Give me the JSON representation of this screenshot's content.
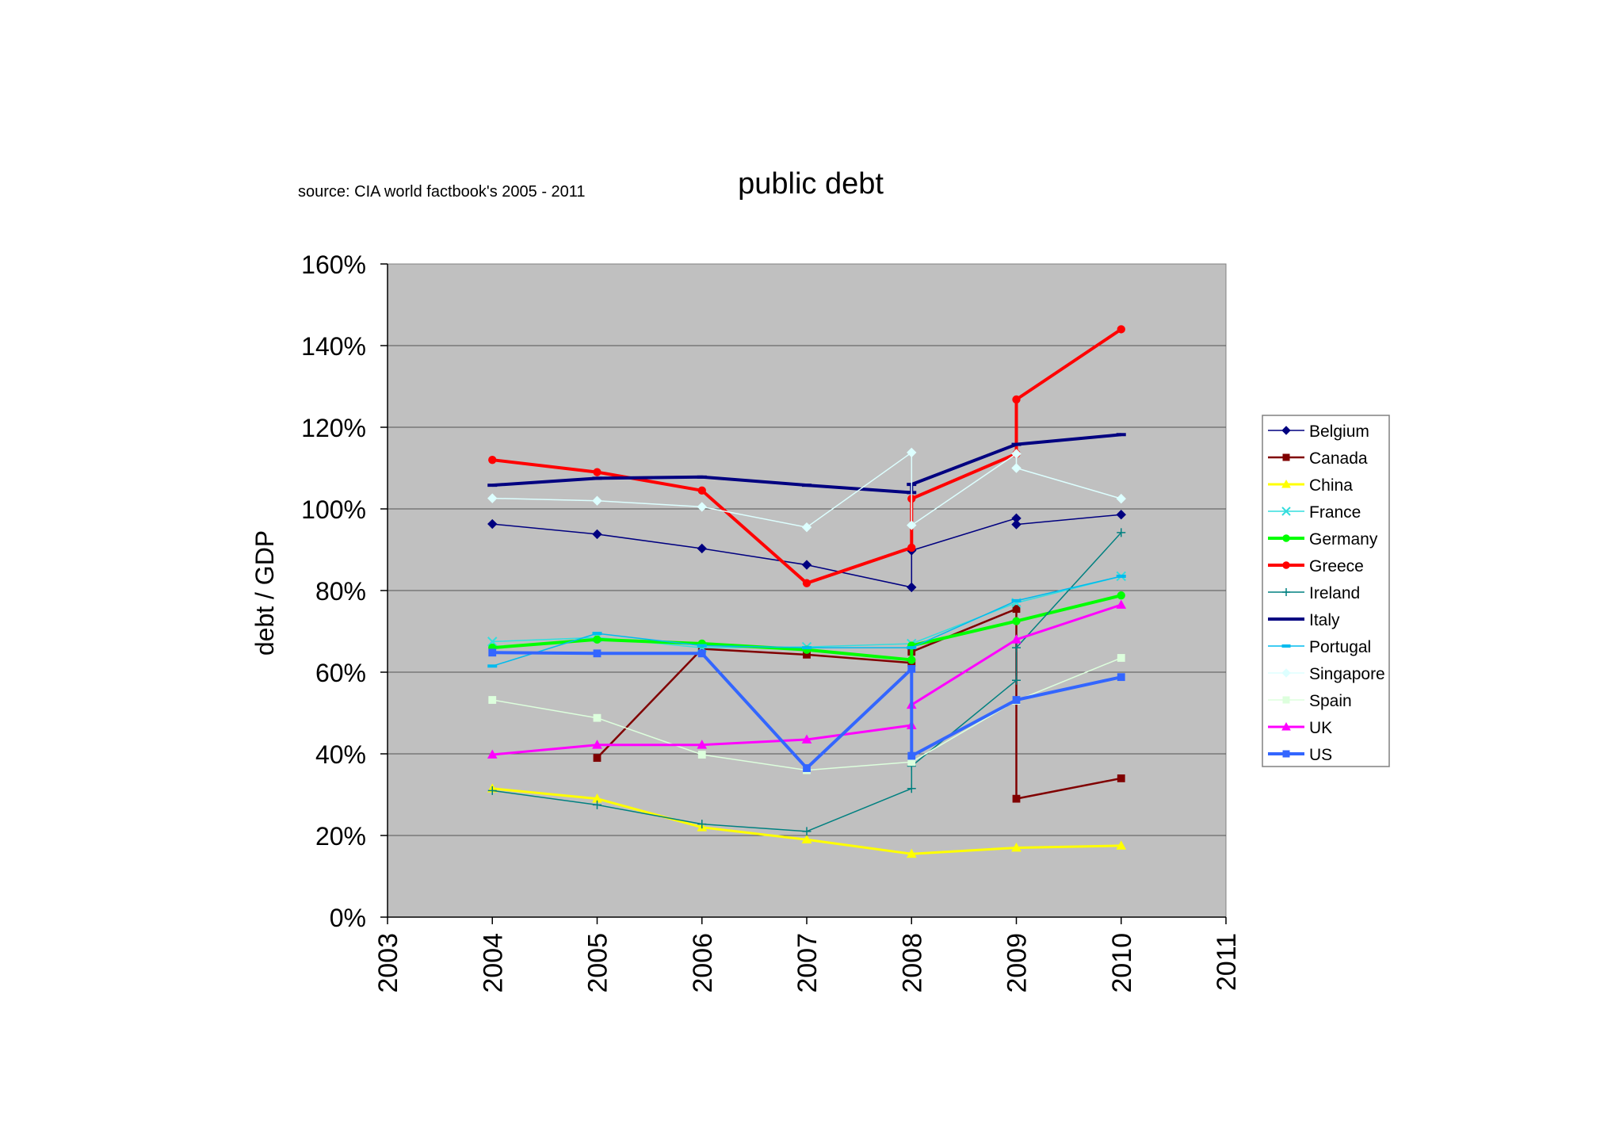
{
  "chart_data": {
    "type": "line",
    "title": "public debt",
    "subtitle": "source: CIA world factbook's 2005 - 2011",
    "xlabel": "",
    "ylabel": "debt / GDP",
    "xlim": [
      2003,
      2011
    ],
    "ylim": [
      0,
      160
    ],
    "x_ticks": [
      "2003",
      "2004",
      "2005",
      "2006",
      "2007",
      "2008",
      "2009",
      "2010",
      "2011"
    ],
    "y_ticks": [
      "0%",
      "20%",
      "40%",
      "60%",
      "80%",
      "100%",
      "120%",
      "140%",
      "160%"
    ],
    "grid": true,
    "plot_background": "#c0c0c0",
    "legend_position": "right",
    "series": [
      {
        "name": "Belgium",
        "color": "#000080",
        "marker": "diamond",
        "width": 1.5,
        "points": [
          [
            2004,
            96.3
          ],
          [
            2005,
            93.8
          ],
          [
            2006,
            90.3
          ],
          [
            2007,
            86.3
          ],
          [
            2008,
            80.8
          ],
          [
            2008,
            89.8
          ],
          [
            2009,
            97.7
          ],
          [
            2009,
            96.2
          ],
          [
            2010,
            98.6
          ]
        ]
      },
      {
        "name": "Canada",
        "color": "#800000",
        "marker": "square",
        "width": 2.5,
        "points": [
          [
            2005,
            39.0
          ],
          [
            2006,
            65.7
          ],
          [
            2007,
            64.3
          ],
          [
            2008,
            62.3
          ],
          [
            2008,
            65.0
          ],
          [
            2009,
            75.5
          ],
          [
            2009,
            29.0
          ],
          [
            2010,
            34.0
          ]
        ]
      },
      {
        "name": "China",
        "color": "#ffff00",
        "marker": "triangle",
        "width": 3,
        "points": [
          [
            2004,
            31.5
          ],
          [
            2005,
            29.0
          ],
          [
            2006,
            22.0
          ],
          [
            2007,
            19.0
          ],
          [
            2008,
            15.5
          ],
          [
            2009,
            17.0
          ],
          [
            2010,
            17.5
          ]
        ]
      },
      {
        "name": "France",
        "color": "#33dddd",
        "marker": "x",
        "width": 1.5,
        "points": [
          [
            2004,
            67.5
          ],
          [
            2005,
            68.5
          ],
          [
            2006,
            66.0
          ],
          [
            2007,
            66.2
          ],
          [
            2008,
            67.0
          ],
          [
            2009,
            77.0
          ],
          [
            2010,
            83.5
          ]
        ]
      },
      {
        "name": "Germany",
        "color": "#00ff00",
        "marker": "circle",
        "width": 4,
        "points": [
          [
            2004,
            66.0
          ],
          [
            2005,
            68.0
          ],
          [
            2006,
            67.0
          ],
          [
            2007,
            65.5
          ],
          [
            2008,
            63.0
          ],
          [
            2008,
            66.5
          ],
          [
            2009,
            72.5
          ],
          [
            2010,
            78.8
          ]
        ]
      },
      {
        "name": "Greece",
        "color": "#ff0000",
        "marker": "circle",
        "width": 4,
        "points": [
          [
            2004,
            112.0
          ],
          [
            2005,
            109.0
          ],
          [
            2006,
            104.5
          ],
          [
            2007,
            81.8
          ],
          [
            2008,
            90.5
          ],
          [
            2008,
            102.5
          ],
          [
            2009,
            113.5
          ],
          [
            2009,
            126.8
          ],
          [
            2010,
            144.0
          ]
        ]
      },
      {
        "name": "Ireland",
        "color": "#008080",
        "marker": "plus",
        "width": 1.5,
        "points": [
          [
            2004,
            31.0
          ],
          [
            2005,
            27.5
          ],
          [
            2006,
            22.8
          ],
          [
            2007,
            21.0
          ],
          [
            2008,
            31.5
          ],
          [
            2008,
            37.0
          ],
          [
            2009,
            58.0
          ],
          [
            2009,
            66.0
          ],
          [
            2010,
            94.2
          ]
        ]
      },
      {
        "name": "Italy",
        "color": "#000080",
        "marker": "dash",
        "width": 4,
        "points": [
          [
            2004,
            105.8
          ],
          [
            2005,
            107.5
          ],
          [
            2006,
            107.8
          ],
          [
            2007,
            105.8
          ],
          [
            2008,
            104.0
          ],
          [
            2008,
            106.0
          ],
          [
            2009,
            115.8
          ],
          [
            2010,
            118.2
          ]
        ]
      },
      {
        "name": "Portugal",
        "color": "#00bbee",
        "marker": "dash",
        "width": 1.5,
        "points": [
          [
            2004,
            61.5
          ],
          [
            2005,
            69.5
          ],
          [
            2006,
            66.5
          ],
          [
            2007,
            66.0
          ],
          [
            2008,
            66.0
          ],
          [
            2009,
            77.5
          ],
          [
            2010,
            83.5
          ]
        ]
      },
      {
        "name": "Singapore",
        "color": "#ddffff",
        "marker": "diamond",
        "width": 1.5,
        "points": [
          [
            2004,
            102.6
          ],
          [
            2005,
            102.0
          ],
          [
            2006,
            100.5
          ],
          [
            2007,
            95.5
          ],
          [
            2008,
            113.8
          ],
          [
            2008,
            96.0
          ],
          [
            2009,
            113.5
          ],
          [
            2009,
            110.0
          ],
          [
            2010,
            102.5
          ]
        ]
      },
      {
        "name": "Spain",
        "color": "#ddffdd",
        "marker": "square",
        "width": 1.5,
        "points": [
          [
            2004,
            53.2
          ],
          [
            2005,
            48.8
          ],
          [
            2006,
            39.8
          ],
          [
            2007,
            36.0
          ],
          [
            2008,
            38.0
          ],
          [
            2009,
            53.0
          ],
          [
            2010,
            63.5
          ]
        ]
      },
      {
        "name": "UK",
        "color": "#ff00ff",
        "marker": "triangle",
        "width": 3,
        "points": [
          [
            2004,
            39.8
          ],
          [
            2005,
            42.2
          ],
          [
            2006,
            42.2
          ],
          [
            2007,
            43.5
          ],
          [
            2008,
            47.0
          ],
          [
            2008,
            52.0
          ],
          [
            2009,
            68.0
          ],
          [
            2010,
            76.5
          ]
        ]
      },
      {
        "name": "US",
        "color": "#3366ff",
        "marker": "square",
        "width": 4,
        "points": [
          [
            2004,
            64.8
          ],
          [
            2005,
            64.6
          ],
          [
            2006,
            64.6
          ],
          [
            2007,
            36.5
          ],
          [
            2008,
            60.8
          ],
          [
            2008,
            39.5
          ],
          [
            2009,
            53.2
          ],
          [
            2010,
            58.8
          ]
        ]
      }
    ]
  }
}
